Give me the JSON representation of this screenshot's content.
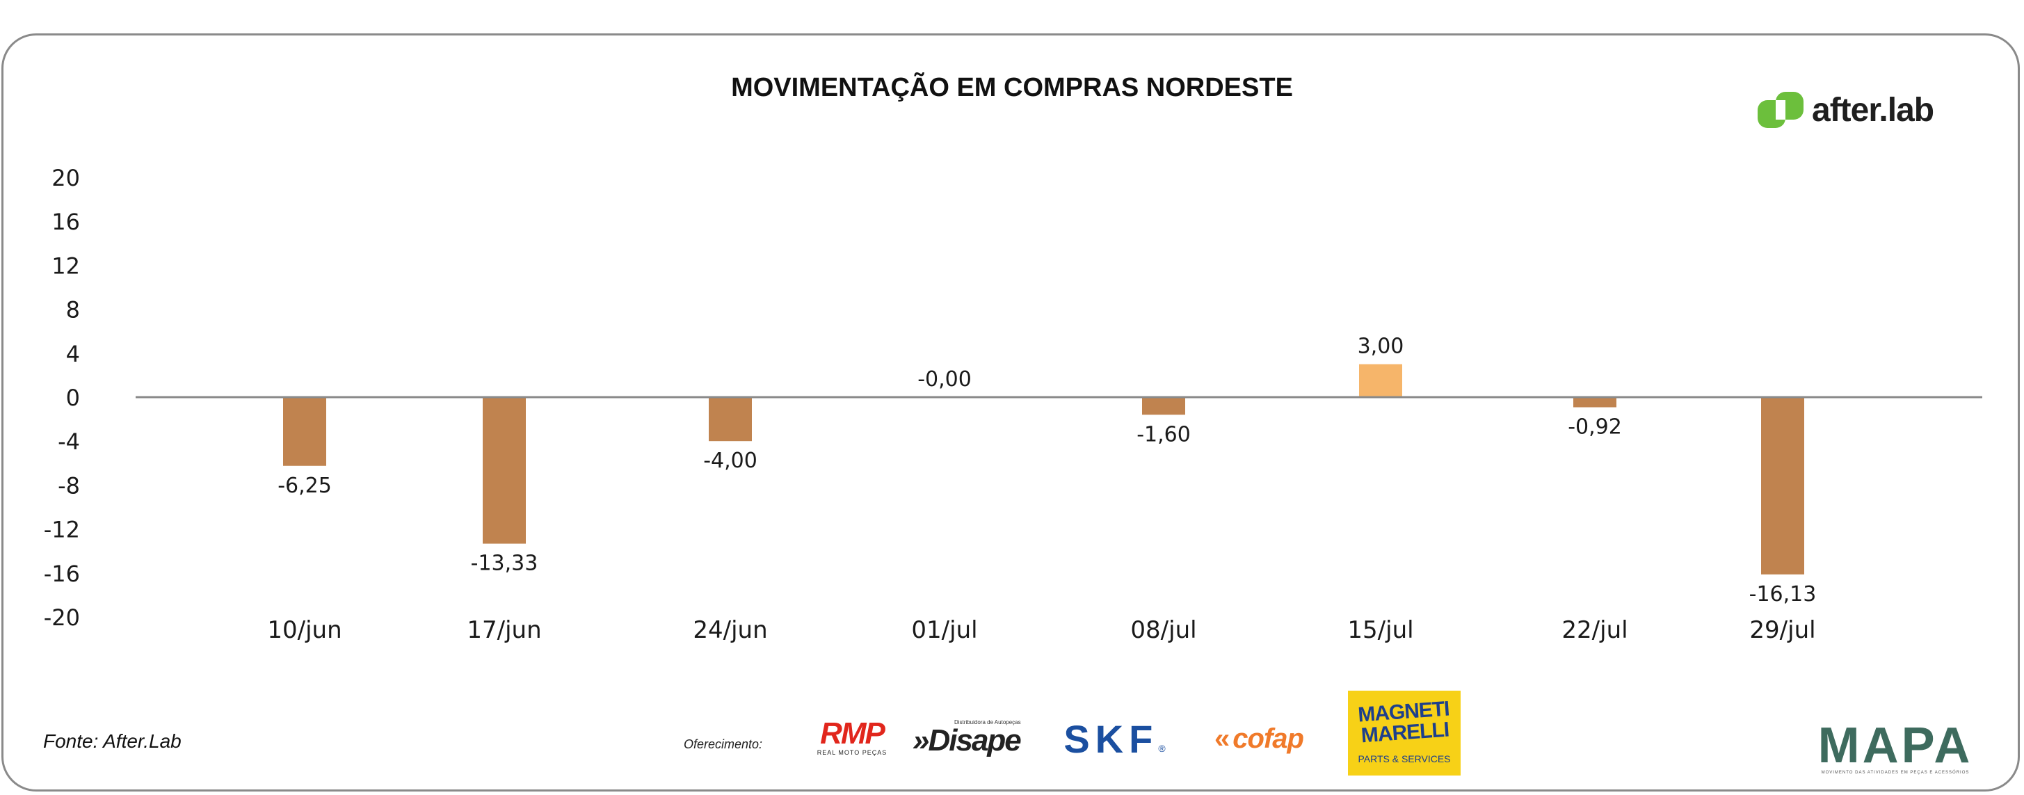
{
  "chart_data": {
    "type": "bar",
    "title": "MOVIMENTAÇÃO EM COMPRAS NORDESTE",
    "categories": [
      "10/jun",
      "17/jun",
      "24/jun",
      "01/jul",
      "08/jul",
      "15/jul",
      "22/jul",
      "29/jul"
    ],
    "values": [
      -6.25,
      -13.33,
      -4.0,
      -0.0,
      -1.6,
      3.0,
      -0.92,
      -16.13
    ],
    "data_labels": [
      "-6,25",
      "-13,33",
      "-4,00",
      "-0,00",
      "-1,60",
      "3,00",
      "-0,92",
      "-16,13"
    ],
    "ylim": [
      -20,
      20
    ],
    "yticks": [
      20,
      16,
      12,
      8,
      4,
      0,
      -4,
      -8,
      -12,
      -16,
      -20
    ],
    "xlabel": "",
    "ylabel": "",
    "grid": false,
    "colors": {
      "negative": "#c0834f",
      "positive": "#f6b56a",
      "zero_line": "#8a8a8a"
    }
  },
  "branding": {
    "logo_text": "after.lab",
    "logo_color": "#6cbf3c"
  },
  "footer": {
    "source": "Fonte: After.Lab",
    "offer_label": "Oferecimento:",
    "sponsors": {
      "rmp": {
        "logo": "RMP",
        "sub": "REAL MOTO PEÇAS"
      },
      "disape": {
        "logo": "»Disape",
        "sub": "Distribuidora de Autopeças"
      },
      "skf": {
        "logo": "SKF",
        "reg": "®"
      },
      "cofap": {
        "logo": "cofap"
      },
      "magneti": {
        "logo": "MAGNETI MARELLI",
        "sub": "PARTS & SERVICES"
      },
      "mapa": {
        "logo": "MAPA",
        "sub": "MOVIMENTO DAS ATIVIDADES EM PEÇAS E ACESSÓRIOS"
      }
    }
  }
}
